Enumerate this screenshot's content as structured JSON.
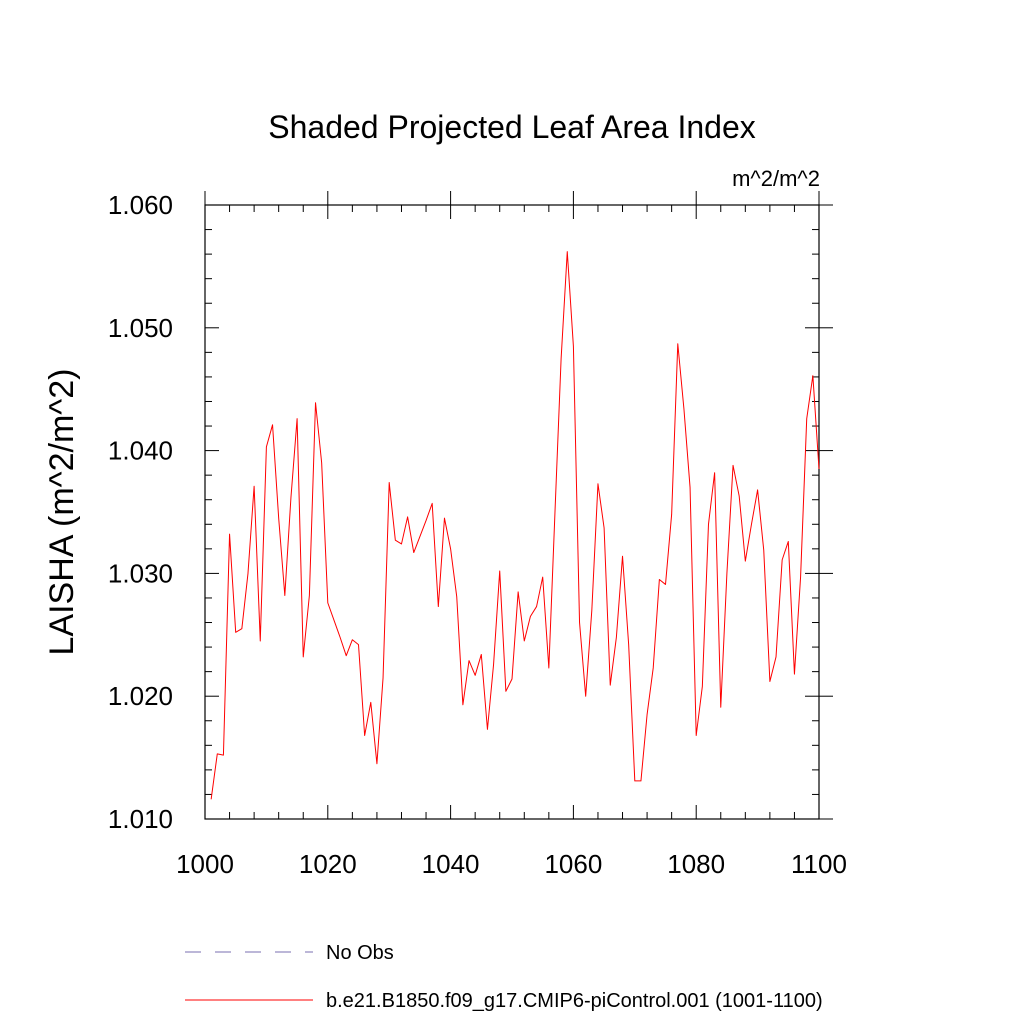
{
  "chart_data": {
    "type": "line",
    "title": "Shaded Projected Leaf Area Index",
    "units_label": "m^2/m^2",
    "xlabel": "",
    "ylabel": "LAISHA  (m^2/m^2)",
    "xlim": [
      1000,
      1100
    ],
    "ylim": [
      1.01,
      1.06
    ],
    "x_ticks": [
      1000,
      1020,
      1040,
      1060,
      1080,
      1100
    ],
    "x_tick_labels": [
      "1000",
      "1020",
      "1040",
      "1060",
      "1080",
      "1100"
    ],
    "y_ticks": [
      1.01,
      1.02,
      1.03,
      1.04,
      1.05,
      1.06
    ],
    "y_tick_labels": [
      "1.010",
      "1.020",
      "1.030",
      "1.040",
      "1.050",
      "1.060"
    ],
    "grid": false,
    "series": [
      {
        "name": "No Obs",
        "color": "#7a6fb0",
        "style": "dashed",
        "x": [],
        "values": []
      },
      {
        "name": "b.e21.B1850.f09_g17.CMIP6-piControl.001 (1001-1100)",
        "color": "#ff0000",
        "style": "solid",
        "x": [
          1001,
          1002,
          1003,
          1004,
          1005,
          1006,
          1007,
          1008,
          1009,
          1010,
          1011,
          1012,
          1013,
          1014,
          1015,
          1016,
          1017,
          1018,
          1019,
          1020,
          1021,
          1022,
          1023,
          1024,
          1025,
          1026,
          1027,
          1028,
          1029,
          1030,
          1031,
          1032,
          1033,
          1034,
          1035,
          1036,
          1037,
          1038,
          1039,
          1040,
          1041,
          1042,
          1043,
          1044,
          1045,
          1046,
          1047,
          1048,
          1049,
          1050,
          1051,
          1052,
          1053,
          1054,
          1055,
          1056,
          1057,
          1058,
          1059,
          1060,
          1061,
          1062,
          1063,
          1064,
          1065,
          1066,
          1067,
          1068,
          1069,
          1070,
          1071,
          1072,
          1073,
          1074,
          1075,
          1076,
          1077,
          1078,
          1079,
          1080,
          1081,
          1082,
          1083,
          1084,
          1085,
          1086,
          1087,
          1088,
          1089,
          1090,
          1091,
          1092,
          1093,
          1094,
          1095,
          1096,
          1097,
          1098,
          1099,
          1100
        ],
        "values": [
          1.0116,
          1.0153,
          1.0152,
          1.0332,
          1.0252,
          1.0255,
          1.03,
          1.0371,
          1.0245,
          1.0403,
          1.0421,
          1.0345,
          1.0282,
          1.0362,
          1.0426,
          1.0232,
          1.0282,
          1.0439,
          1.039,
          1.0276,
          1.0262,
          1.0248,
          1.0233,
          1.0246,
          1.0242,
          1.0168,
          1.0195,
          1.0145,
          1.0215,
          1.0374,
          1.0327,
          1.0324,
          1.0346,
          1.0317,
          1.033,
          1.0343,
          1.0357,
          1.0273,
          1.0345,
          1.032,
          1.0281,
          1.0193,
          1.0229,
          1.0217,
          1.0234,
          1.0173,
          1.0226,
          1.0302,
          1.0204,
          1.0214,
          1.0285,
          1.0245,
          1.0265,
          1.0273,
          1.0297,
          1.0223,
          1.035,
          1.0475,
          1.0562,
          1.0485,
          1.026,
          1.02,
          1.027,
          1.0373,
          1.0337,
          1.0209,
          1.0248,
          1.0314,
          1.0242,
          1.0131,
          1.0131,
          1.0185,
          1.0223,
          1.0295,
          1.0291,
          1.0348,
          1.0487,
          1.0434,
          1.037,
          1.0168,
          1.0208,
          1.034,
          1.0382,
          1.0191,
          1.03,
          1.0388,
          1.0363,
          1.031,
          1.034,
          1.0368,
          1.0319,
          1.0212,
          1.0232,
          1.0311,
          1.0326,
          1.0218,
          1.0297,
          1.0426,
          1.0461,
          1.0385
        ]
      }
    ]
  }
}
